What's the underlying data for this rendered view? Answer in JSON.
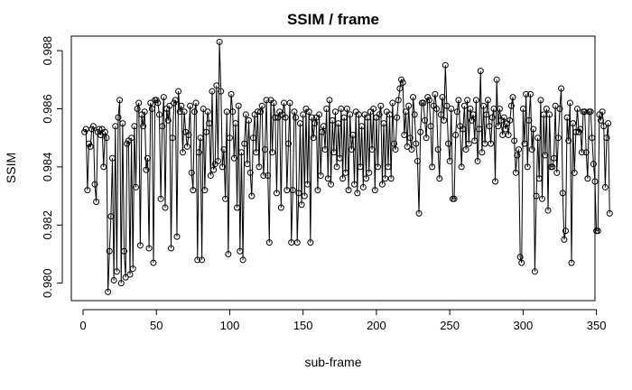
{
  "chart_data": {
    "type": "line",
    "title": "SSIM / frame",
    "xlabel": "sub-frame",
    "ylabel": "SSIM",
    "xlim": [
      -8,
      349
    ],
    "ylim": [
      0.9794,
      0.9885
    ],
    "x_ticks": [
      0,
      50,
      100,
      150,
      200,
      250,
      300,
      350
    ],
    "x_tick_labels": [
      "0",
      "50",
      "100",
      "150",
      "200",
      "250",
      "300",
      "350"
    ],
    "y_ticks": [
      0.98,
      0.982,
      0.984,
      0.986,
      0.988
    ],
    "y_tick_labels": [
      "0.980",
      "0.982",
      "0.984",
      "0.986",
      "0.988"
    ],
    "grid": false,
    "marker": "open-circle",
    "series": [
      {
        "x_start": 1,
        "values": [
          0.9852,
          0.9853,
          0.9832,
          0.9848,
          0.9847,
          0.9853,
          0.9854,
          0.9834,
          0.9828,
          0.9852,
          0.9853,
          0.9851,
          0.9853,
          0.984,
          0.9852,
          0.985,
          0.9797,
          0.9811,
          0.9823,
          0.9843,
          0.9801,
          0.9854,
          0.9804,
          0.9857,
          0.9863,
          0.98,
          0.9855,
          0.9811,
          0.9802,
          0.9848,
          0.9849,
          0.9803,
          0.985,
          0.9805,
          0.9854,
          0.9833,
          0.986,
          0.9862,
          0.9813,
          0.9858,
          0.9854,
          0.9859,
          0.9839,
          0.9843,
          0.9812,
          0.9862,
          0.986,
          0.9807,
          0.9863,
          0.9863,
          0.9862,
          0.9858,
          0.9829,
          0.9854,
          0.9864,
          0.9826,
          0.986,
          0.9856,
          0.9861,
          0.9812,
          0.985,
          0.9862,
          0.9863,
          0.9816,
          0.9866,
          0.9859,
          0.9861,
          0.9845,
          0.9859,
          0.9852,
          0.9847,
          0.9851,
          0.9861,
          0.9838,
          0.9832,
          0.9859,
          0.9862,
          0.9808,
          0.9845,
          0.985,
          0.9808,
          0.986,
          0.9832,
          0.9852,
          0.9859,
          0.9855,
          0.9837,
          0.9866,
          0.9839,
          0.9841,
          0.9868,
          0.9842,
          0.9883,
          0.9866,
          0.984,
          0.9846,
          0.9829,
          0.9859,
          0.981,
          0.985,
          0.9865,
          0.9859,
          0.9843,
          0.9855,
          0.9826,
          0.9861,
          0.9811,
          0.9845,
          0.9808,
          0.9848,
          0.9858,
          0.9841,
          0.9856,
          0.9838,
          0.983,
          0.985,
          0.9858,
          0.9845,
          0.9859,
          0.984,
          0.9859,
          0.9861,
          0.9837,
          0.9846,
          0.9863,
          0.9837,
          0.9814,
          0.9863,
          0.9845,
          0.9862,
          0.9857,
          0.9831,
          0.9857,
          0.9859,
          0.9826,
          0.9858,
          0.9862,
          0.9857,
          0.9832,
          0.9848,
          0.9862,
          0.9814,
          0.9832,
          0.9859,
          0.9857,
          0.9814,
          0.9831,
          0.9855,
          0.9827,
          0.9858,
          0.983,
          0.986,
          0.9834,
          0.9859,
          0.9814,
          0.9857,
          0.985,
          0.9855,
          0.9857,
          0.9832,
          0.9858,
          0.9837,
          0.9852,
          0.9854,
          0.9846,
          0.986,
          0.9836,
          0.9863,
          0.9834,
          0.9856,
          0.9845,
          0.9859,
          0.984,
          0.9855,
          0.9843,
          0.986,
          0.9836,
          0.9857,
          0.9838,
          0.986,
          0.9832,
          0.9858,
          0.9846,
          0.9851,
          0.9834,
          0.9859,
          0.9831,
          0.9858,
          0.984,
          0.9854,
          0.9833,
          0.9858,
          0.9836,
          0.9857,
          0.9838,
          0.9859,
          0.9846,
          0.986,
          0.9832,
          0.9857,
          0.984,
          0.9858,
          0.9861,
          0.9834,
          0.9855,
          0.9836,
          0.9859,
          0.984,
          0.9858,
          0.9836,
          0.9862,
          0.9848,
          0.9846,
          0.9857,
          0.9863,
          0.9867,
          0.987,
          0.9869,
          0.9851,
          0.9859,
          0.9847,
          0.9861,
          0.985,
          0.9846,
          0.9864,
          0.9858,
          0.9848,
          0.9842,
          0.9824,
          0.9852,
          0.9862,
          0.9862,
          0.9856,
          0.985,
          0.9864,
          0.9863,
          0.9854,
          0.984,
          0.9861,
          0.9865,
          0.986,
          0.9846,
          0.9836,
          0.9858,
          0.9864,
          0.9856,
          0.9875,
          0.9861,
          0.9848,
          0.9842,
          0.986,
          0.9829,
          0.9829,
          0.9851,
          0.9859,
          0.9863,
          0.9854,
          0.984,
          0.9853,
          0.9861,
          0.9846,
          0.9863,
          0.9848,
          0.986,
          0.9856,
          0.9858,
          0.9849,
          0.9863,
          0.9842,
          0.9853,
          0.9873,
          0.9845,
          0.9861,
          0.9848,
          0.9858,
          0.9863,
          0.9854,
          0.9848,
          0.9857,
          0.986,
          0.9835,
          0.987,
          0.9854,
          0.986,
          0.9856,
          0.9851,
          0.9857,
          0.9853,
          0.9855,
          0.9851,
          0.9856,
          0.9861,
          0.9864,
          0.9849,
          0.9838,
          0.9844,
          0.9846,
          0.9809,
          0.9807,
          0.986,
          0.9848,
          0.9865,
          0.984,
          0.9856,
          0.9865,
          0.9846,
          0.9853,
          0.9804,
          0.983,
          0.985,
          0.9836,
          0.9863,
          0.9829,
          0.9858,
          0.9844,
          0.986,
          0.9825,
          0.9858,
          0.984,
          0.984,
          0.9843,
          0.9861,
          0.9838,
          0.985,
          0.986,
          0.9867,
          0.9831,
          0.9815,
          0.9818,
          0.9857,
          0.9849,
          0.9862,
          0.9807,
          0.9855,
          0.9838,
          0.9852,
          0.986,
          0.9852,
          0.9853,
          0.9845,
          0.9859,
          0.9859,
          0.9845,
          0.9836,
          0.9859,
          0.9859,
          0.985,
          0.9841,
          0.9835,
          0.9818,
          0.9818,
          0.9858,
          0.9856,
          0.9859,
          0.9854,
          0.9833,
          0.985,
          0.9855,
          0.9824
        ]
      }
    ]
  }
}
